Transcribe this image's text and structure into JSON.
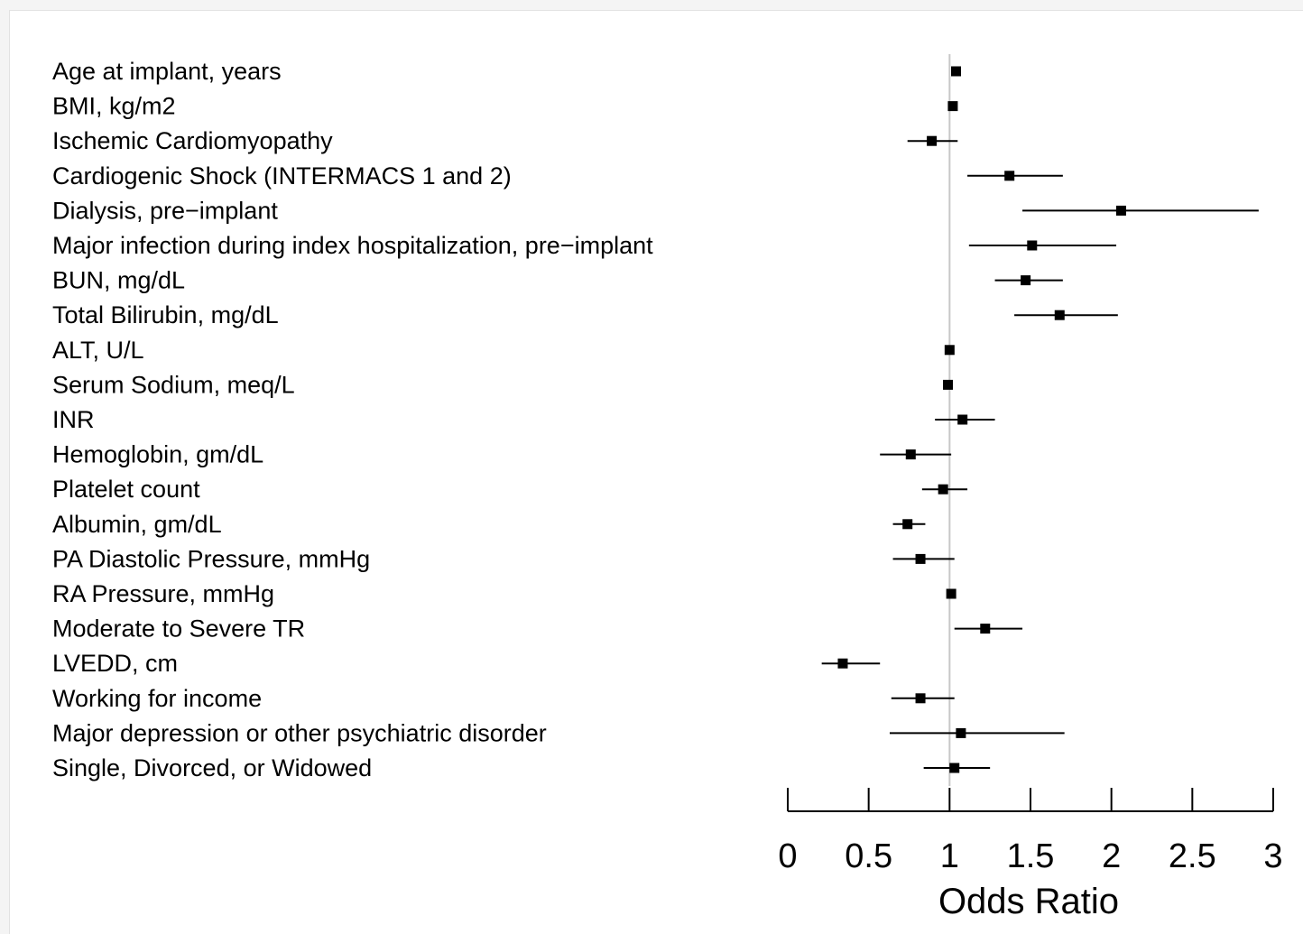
{
  "chart_data": {
    "type": "forest",
    "xlabel": "Odds Ratio",
    "xlim": [
      0,
      3
    ],
    "xticks": [
      0,
      0.5,
      1,
      1.5,
      2,
      2.5,
      3
    ],
    "xtick_labels": [
      "0",
      "0.5",
      "1",
      "1.5",
      "2",
      "2.5",
      "3"
    ],
    "reference_line": 1,
    "colors": {
      "marker": "#000000",
      "reference": "#c8c8c8"
    },
    "rows": [
      {
        "label": "Age at implant, years",
        "or": 1.04,
        "lo": 1.04,
        "hi": 1.04
      },
      {
        "label": "BMI, kg/m2",
        "or": 1.02,
        "lo": 1.02,
        "hi": 1.02
      },
      {
        "label": "Ischemic Cardiomyopathy",
        "or": 0.89,
        "lo": 0.74,
        "hi": 1.05
      },
      {
        "label": "Cardiogenic Shock (INTERMACS 1 and 2)",
        "or": 1.37,
        "lo": 1.11,
        "hi": 1.7
      },
      {
        "label": "Dialysis, pre−implant",
        "or": 2.06,
        "lo": 1.45,
        "hi": 2.91
      },
      {
        "label": "Major infection during index hospitalization, pre−implant",
        "or": 1.51,
        "lo": 1.12,
        "hi": 2.03
      },
      {
        "label": "BUN, mg/dL",
        "or": 1.47,
        "lo": 1.28,
        "hi": 1.7
      },
      {
        "label": "Total Bilirubin, mg/dL",
        "or": 1.68,
        "lo": 1.4,
        "hi": 2.04
      },
      {
        "label": "ALT, U/L",
        "or": 1.0,
        "lo": 1.0,
        "hi": 1.0
      },
      {
        "label": "Serum Sodium, meq/L",
        "or": 0.99,
        "lo": 0.99,
        "hi": 0.99
      },
      {
        "label": "INR",
        "or": 1.08,
        "lo": 0.91,
        "hi": 1.28
      },
      {
        "label": "Hemoglobin, gm/dL",
        "or": 0.76,
        "lo": 0.57,
        "hi": 1.01
      },
      {
        "label": "Platelet count",
        "or": 0.96,
        "lo": 0.83,
        "hi": 1.11
      },
      {
        "label": "Albumin, gm/dL",
        "or": 0.74,
        "lo": 0.65,
        "hi": 0.85
      },
      {
        "label": "PA Diastolic Pressure, mmHg",
        "or": 0.82,
        "lo": 0.65,
        "hi": 1.03
      },
      {
        "label": "RA Pressure, mmHg",
        "or": 1.01,
        "lo": 1.01,
        "hi": 1.01
      },
      {
        "label": "Moderate to Severe TR",
        "or": 1.22,
        "lo": 1.03,
        "hi": 1.45
      },
      {
        "label": "LVEDD, cm",
        "or": 0.34,
        "lo": 0.21,
        "hi": 0.57
      },
      {
        "label": "Working for income",
        "or": 0.82,
        "lo": 0.64,
        "hi": 1.03
      },
      {
        "label": "Major depression or other psychiatric disorder",
        "or": 1.07,
        "lo": 0.63,
        "hi": 1.71
      },
      {
        "label": "Single, Divorced, or Widowed",
        "or": 1.03,
        "lo": 0.84,
        "hi": 1.25
      }
    ]
  }
}
